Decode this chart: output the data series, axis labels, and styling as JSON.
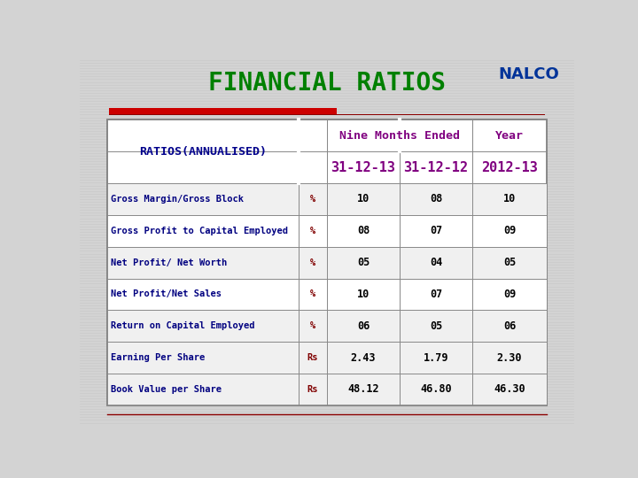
{
  "title": "FINANCIAL RATIOS",
  "title_color": "#008000",
  "bg_color": "#d3d3d3",
  "header1_text": "RATIOS(ANNUALISED)",
  "header1_color": "#00008B",
  "header2_text": "Nine Months Ended",
  "header3_text": "Year",
  "header_col_color": "#800080",
  "subheader_col1": "31-12-13",
  "subheader_col2": "31-12-12",
  "subheader_col3": "2012-13",
  "subheader_color": "#800080",
  "rows": [
    [
      "Gross Margin/Gross Block",
      "%",
      "10",
      "08",
      "10"
    ],
    [
      "Gross Profit to Capital Employed",
      "%",
      "08",
      "07",
      "09"
    ],
    [
      "Net Profit/ Net Worth",
      "%",
      "05",
      "04",
      "05"
    ],
    [
      "Net Profit/Net Sales",
      "%",
      "10",
      "07",
      "09"
    ],
    [
      "Return on Capital Employed",
      "%",
      "06",
      "05",
      "06"
    ],
    [
      "Earning Per Share",
      "Rs",
      "2.43",
      "1.79",
      "2.30"
    ],
    [
      "Book Value per Share",
      "Rs",
      "48.12",
      "46.80",
      "46.30"
    ]
  ],
  "row_label_color": "#000080",
  "unit_color": "#800000",
  "data_color": "#000000",
  "red_bar_color": "#cc0000",
  "line_color": "#8B0000",
  "logo_text": "NALCO",
  "stripe_color": "#c0c0c0"
}
